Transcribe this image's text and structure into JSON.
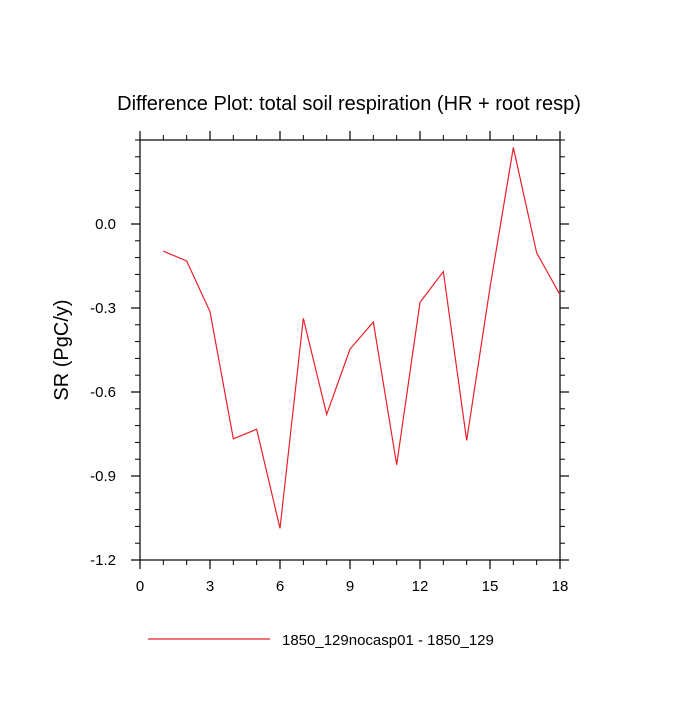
{
  "chart_data": {
    "type": "line",
    "title": "Difference Plot: total soil respiration (HR + root resp)",
    "xlabel": "",
    "ylabel": "SR  (PgC/y)",
    "xlim": [
      0,
      18
    ],
    "ylim": [
      -1.2,
      0.3
    ],
    "x_ticks": [
      0,
      3,
      6,
      9,
      12,
      15,
      18
    ],
    "x_tick_labels": [
      "0",
      "3",
      "6",
      "9",
      "12",
      "15",
      "18"
    ],
    "y_ticks": [
      0.0,
      -0.3,
      -0.6,
      -0.9,
      -1.2
    ],
    "y_tick_labels": [
      "0.0",
      "-0.3",
      "-0.6",
      "-0.9",
      "-1.2"
    ],
    "grid": false,
    "legend_position": "bottom",
    "series": [
      {
        "name": "1850_129nocasp01 - 1850_129",
        "color": "#e8202a",
        "x": [
          1,
          2,
          3,
          4,
          5,
          6,
          7,
          8,
          9,
          10,
          11,
          12,
          13,
          14,
          15,
          16,
          17,
          18
        ],
        "values": [
          -0.097,
          -0.132,
          -0.313,
          -0.767,
          -0.733,
          -1.087,
          -0.337,
          -0.68,
          -0.447,
          -0.35,
          -0.86,
          -0.28,
          -0.17,
          -0.773,
          -0.227,
          0.273,
          -0.103,
          -0.253
        ]
      }
    ]
  }
}
